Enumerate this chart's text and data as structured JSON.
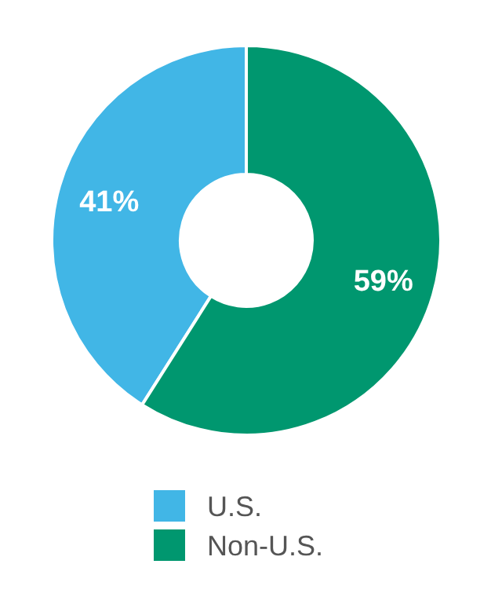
{
  "chart_data": {
    "type": "donut",
    "categories": [
      "U.S.",
      "Non-U.S."
    ],
    "values": [
      41,
      59
    ],
    "colors": [
      "#41b6e6",
      "#00976f"
    ],
    "value_labels": [
      "41%",
      "59%"
    ],
    "legend": "bottom"
  }
}
